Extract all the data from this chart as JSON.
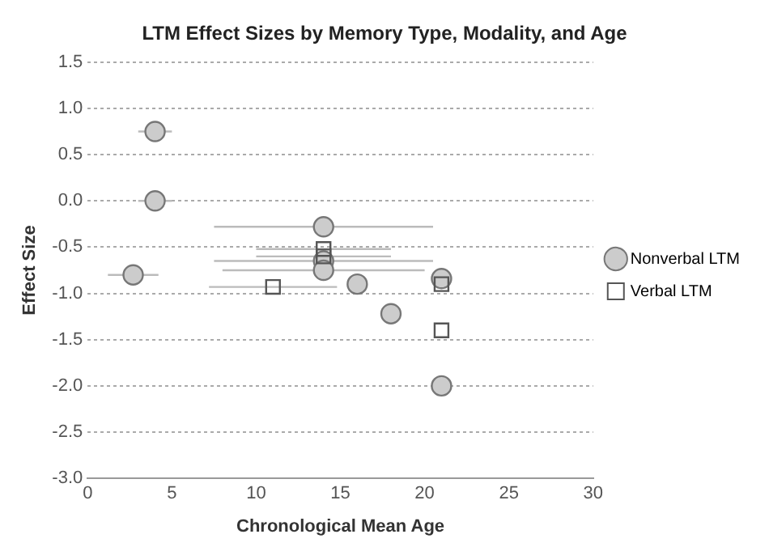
{
  "chart_data": {
    "type": "scatter",
    "title": "LTM Effect Sizes by Memory Type, Modality, and Age",
    "xlabel": "Chronological Mean Age",
    "ylabel": "Effect Size",
    "xlim": [
      0,
      30
    ],
    "xticks": [
      0,
      5,
      10,
      15,
      20,
      25,
      30
    ],
    "ylim": [
      -3,
      1.5
    ],
    "yticks": [
      {
        "value": -3,
        "label": "-3.0"
      },
      {
        "value": -2.5,
        "label": "-2.5"
      },
      {
        "value": -2,
        "label": "-2.0"
      },
      {
        "value": -1.5,
        "label": "-1.5"
      },
      {
        "value": -1,
        "label": "-1.0"
      },
      {
        "value": -0.5,
        "label": "-0.5"
      },
      {
        "value": 0,
        "label": "0.0"
      },
      {
        "value": 0.5,
        "label": "0.5"
      },
      {
        "value": 1,
        "label": "1.0"
      },
      {
        "value": 1.5,
        "label": "1.5"
      }
    ],
    "grid": "y",
    "legend": "right",
    "series": [
      {
        "name": "Nonverbal LTM",
        "color": "#cccccc",
        "marker": "circle",
        "x": [
          4,
          4,
          2.7,
          14,
          14,
          14,
          16,
          18,
          21,
          21
        ],
        "values": [
          0.75,
          0,
          -0.8,
          -0.28,
          -0.65,
          -0.75,
          -0.9,
          -1.22,
          -0.84,
          -2
        ],
        "xerrors": [
          1,
          1,
          1.5,
          6.5,
          6.5,
          6,
          null,
          null,
          null,
          null
        ]
      },
      {
        "name": "Verbal LTM",
        "color": "#555555",
        "marker": "square",
        "x": [
          11,
          14,
          14,
          21,
          21
        ],
        "values": [
          -0.93,
          -0.52,
          -0.6,
          -0.9,
          -1.4
        ],
        "xerrors": [
          3.8,
          4,
          4,
          null,
          null
        ]
      }
    ]
  }
}
